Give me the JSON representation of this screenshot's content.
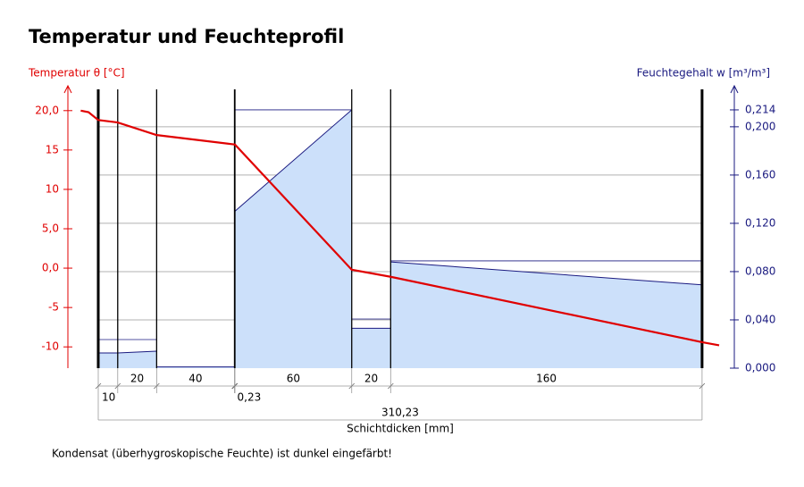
{
  "chart_data": {
    "type": "profile",
    "title": "Temperatur und Feuchteprofil",
    "ylabel": "Temperatur θ [°C]",
    "y2label": "Feuchtegehalt  w [m³/m³]",
    "xlabel": "Schichtdicken [mm]",
    "note": "Kondensat (überhygroskopische Feuchte) ist dunkel eingefärbt!",
    "xlim": [
      -15.6,
      326.8
    ],
    "ylim": [
      -12.7,
      22.7
    ],
    "yticks": [
      {
        "value": 20,
        "label": "20,0"
      },
      15,
      10,
      {
        "value": 5,
        "label": "5,0"
      },
      {
        "value": 0,
        "label": "0,0"
      },
      -5,
      -10
    ],
    "y2lim": [
      0,
      0.231
    ],
    "y2ticks": [
      {
        "value": 0,
        "label": "0,000"
      },
      {
        "value": 0.04,
        "label": "0,040"
      },
      {
        "value": 0.08,
        "label": "0,080"
      },
      {
        "value": 0.12,
        "label": "0,120"
      },
      {
        "value": 0.16,
        "label": "0,160"
      },
      {
        "value": 0.2,
        "label": "0,200"
      }
    ],
    "y2_marker": {
      "value": 0.214,
      "label": "0,214"
    },
    "grid": true,
    "thicknesses": [
      10,
      20,
      40,
      0.23,
      60,
      20,
      160
    ],
    "thickness_labels": [
      "10",
      "20",
      "40",
      "0,23",
      "60",
      "20",
      "160"
    ],
    "total": 310.23,
    "total_label": "310,23",
    "temperature": {
      "color": "#e00000",
      "x": [
        -9,
        -5,
        0,
        10,
        30,
        70,
        70.23,
        130.23,
        150.23,
        310.23,
        319
      ],
      "values": [
        20.0,
        19.8,
        18.8,
        18.5,
        16.9,
        15.7,
        15.7,
        -0.2,
        -1.1,
        -9.4,
        -9.8
      ]
    },
    "moisture": {
      "color": "#1a1a80",
      "fill": "#cce0fa",
      "layers": [
        {
          "values": [
            0.0126,
            0.0126
          ],
          "ref": 0.0237
        },
        {
          "values": [
            0.0126,
            0.0141
          ],
          "ref": 0.0237
        },
        {
          "values": [
            0.001,
            0.001
          ],
          "ref": null
        },
        {
          "values": [
            0.13,
            0.13
          ],
          "ref": null
        },
        {
          "values": [
            0.13,
            0.214
          ],
          "ref": 0.214
        },
        {
          "values": [
            0.033,
            0.033
          ],
          "ref": 0.0407
        },
        {
          "values": [
            0.088,
            0.069
          ],
          "ref": 0.0889
        }
      ]
    }
  }
}
